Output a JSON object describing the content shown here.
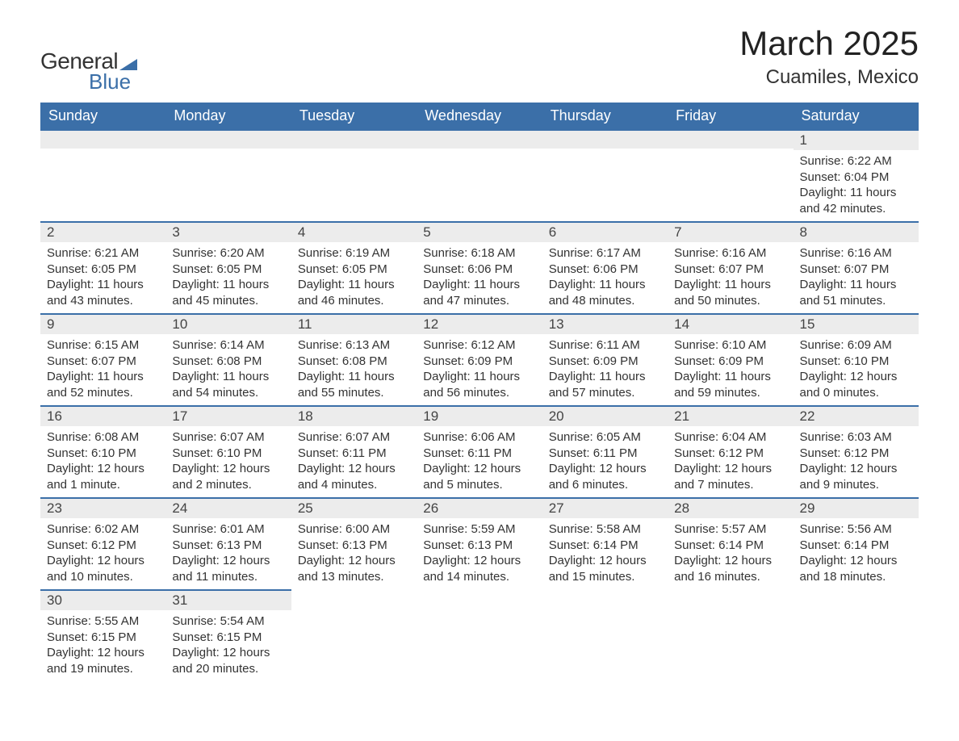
{
  "logo": {
    "text1": "General",
    "text2": "Blue"
  },
  "title": "March 2025",
  "location": "Cuamiles, Mexico",
  "colors": {
    "header_bg": "#3b6fa8",
    "band_bg": "#ececec",
    "row_border": "#3b6fa8",
    "text": "#333333",
    "logo_blue": "#3b6fa8"
  },
  "day_headers": [
    "Sunday",
    "Monday",
    "Tuesday",
    "Wednesday",
    "Thursday",
    "Friday",
    "Saturday"
  ],
  "weeks": [
    [
      {
        "n": "",
        "sr": "",
        "ss": "",
        "dl": ""
      },
      {
        "n": "",
        "sr": "",
        "ss": "",
        "dl": ""
      },
      {
        "n": "",
        "sr": "",
        "ss": "",
        "dl": ""
      },
      {
        "n": "",
        "sr": "",
        "ss": "",
        "dl": ""
      },
      {
        "n": "",
        "sr": "",
        "ss": "",
        "dl": ""
      },
      {
        "n": "",
        "sr": "",
        "ss": "",
        "dl": ""
      },
      {
        "n": "1",
        "sr": "Sunrise: 6:22 AM",
        "ss": "Sunset: 6:04 PM",
        "dl": "Daylight: 11 hours and 42 minutes."
      }
    ],
    [
      {
        "n": "2",
        "sr": "Sunrise: 6:21 AM",
        "ss": "Sunset: 6:05 PM",
        "dl": "Daylight: 11 hours and 43 minutes."
      },
      {
        "n": "3",
        "sr": "Sunrise: 6:20 AM",
        "ss": "Sunset: 6:05 PM",
        "dl": "Daylight: 11 hours and 45 minutes."
      },
      {
        "n": "4",
        "sr": "Sunrise: 6:19 AM",
        "ss": "Sunset: 6:05 PM",
        "dl": "Daylight: 11 hours and 46 minutes."
      },
      {
        "n": "5",
        "sr": "Sunrise: 6:18 AM",
        "ss": "Sunset: 6:06 PM",
        "dl": "Daylight: 11 hours and 47 minutes."
      },
      {
        "n": "6",
        "sr": "Sunrise: 6:17 AM",
        "ss": "Sunset: 6:06 PM",
        "dl": "Daylight: 11 hours and 48 minutes."
      },
      {
        "n": "7",
        "sr": "Sunrise: 6:16 AM",
        "ss": "Sunset: 6:07 PM",
        "dl": "Daylight: 11 hours and 50 minutes."
      },
      {
        "n": "8",
        "sr": "Sunrise: 6:16 AM",
        "ss": "Sunset: 6:07 PM",
        "dl": "Daylight: 11 hours and 51 minutes."
      }
    ],
    [
      {
        "n": "9",
        "sr": "Sunrise: 6:15 AM",
        "ss": "Sunset: 6:07 PM",
        "dl": "Daylight: 11 hours and 52 minutes."
      },
      {
        "n": "10",
        "sr": "Sunrise: 6:14 AM",
        "ss": "Sunset: 6:08 PM",
        "dl": "Daylight: 11 hours and 54 minutes."
      },
      {
        "n": "11",
        "sr": "Sunrise: 6:13 AM",
        "ss": "Sunset: 6:08 PM",
        "dl": "Daylight: 11 hours and 55 minutes."
      },
      {
        "n": "12",
        "sr": "Sunrise: 6:12 AM",
        "ss": "Sunset: 6:09 PM",
        "dl": "Daylight: 11 hours and 56 minutes."
      },
      {
        "n": "13",
        "sr": "Sunrise: 6:11 AM",
        "ss": "Sunset: 6:09 PM",
        "dl": "Daylight: 11 hours and 57 minutes."
      },
      {
        "n": "14",
        "sr": "Sunrise: 6:10 AM",
        "ss": "Sunset: 6:09 PM",
        "dl": "Daylight: 11 hours and 59 minutes."
      },
      {
        "n": "15",
        "sr": "Sunrise: 6:09 AM",
        "ss": "Sunset: 6:10 PM",
        "dl": "Daylight: 12 hours and 0 minutes."
      }
    ],
    [
      {
        "n": "16",
        "sr": "Sunrise: 6:08 AM",
        "ss": "Sunset: 6:10 PM",
        "dl": "Daylight: 12 hours and 1 minute."
      },
      {
        "n": "17",
        "sr": "Sunrise: 6:07 AM",
        "ss": "Sunset: 6:10 PM",
        "dl": "Daylight: 12 hours and 2 minutes."
      },
      {
        "n": "18",
        "sr": "Sunrise: 6:07 AM",
        "ss": "Sunset: 6:11 PM",
        "dl": "Daylight: 12 hours and 4 minutes."
      },
      {
        "n": "19",
        "sr": "Sunrise: 6:06 AM",
        "ss": "Sunset: 6:11 PM",
        "dl": "Daylight: 12 hours and 5 minutes."
      },
      {
        "n": "20",
        "sr": "Sunrise: 6:05 AM",
        "ss": "Sunset: 6:11 PM",
        "dl": "Daylight: 12 hours and 6 minutes."
      },
      {
        "n": "21",
        "sr": "Sunrise: 6:04 AM",
        "ss": "Sunset: 6:12 PM",
        "dl": "Daylight: 12 hours and 7 minutes."
      },
      {
        "n": "22",
        "sr": "Sunrise: 6:03 AM",
        "ss": "Sunset: 6:12 PM",
        "dl": "Daylight: 12 hours and 9 minutes."
      }
    ],
    [
      {
        "n": "23",
        "sr": "Sunrise: 6:02 AM",
        "ss": "Sunset: 6:12 PM",
        "dl": "Daylight: 12 hours and 10 minutes."
      },
      {
        "n": "24",
        "sr": "Sunrise: 6:01 AM",
        "ss": "Sunset: 6:13 PM",
        "dl": "Daylight: 12 hours and 11 minutes."
      },
      {
        "n": "25",
        "sr": "Sunrise: 6:00 AM",
        "ss": "Sunset: 6:13 PM",
        "dl": "Daylight: 12 hours and 13 minutes."
      },
      {
        "n": "26",
        "sr": "Sunrise: 5:59 AM",
        "ss": "Sunset: 6:13 PM",
        "dl": "Daylight: 12 hours and 14 minutes."
      },
      {
        "n": "27",
        "sr": "Sunrise: 5:58 AM",
        "ss": "Sunset: 6:14 PM",
        "dl": "Daylight: 12 hours and 15 minutes."
      },
      {
        "n": "28",
        "sr": "Sunrise: 5:57 AM",
        "ss": "Sunset: 6:14 PM",
        "dl": "Daylight: 12 hours and 16 minutes."
      },
      {
        "n": "29",
        "sr": "Sunrise: 5:56 AM",
        "ss": "Sunset: 6:14 PM",
        "dl": "Daylight: 12 hours and 18 minutes."
      }
    ],
    [
      {
        "n": "30",
        "sr": "Sunrise: 5:55 AM",
        "ss": "Sunset: 6:15 PM",
        "dl": "Daylight: 12 hours and 19 minutes."
      },
      {
        "n": "31",
        "sr": "Sunrise: 5:54 AM",
        "ss": "Sunset: 6:15 PM",
        "dl": "Daylight: 12 hours and 20 minutes."
      },
      {
        "n": "",
        "sr": "",
        "ss": "",
        "dl": ""
      },
      {
        "n": "",
        "sr": "",
        "ss": "",
        "dl": ""
      },
      {
        "n": "",
        "sr": "",
        "ss": "",
        "dl": ""
      },
      {
        "n": "",
        "sr": "",
        "ss": "",
        "dl": ""
      },
      {
        "n": "",
        "sr": "",
        "ss": "",
        "dl": ""
      }
    ]
  ]
}
